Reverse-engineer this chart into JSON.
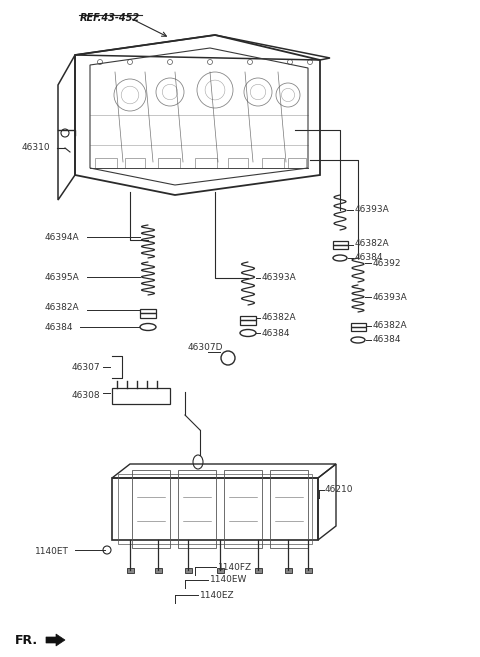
{
  "bg_color": "#ffffff",
  "line_color": "#2a2a2a",
  "text_color": "#333333",
  "fig_width": 4.8,
  "fig_height": 6.57,
  "dpi": 100,
  "labels": {
    "ref": "REF.43-452",
    "46310": "46310",
    "46394A": "46394A",
    "46395A": "46395A",
    "46382A_l": "46382A",
    "46384_l": "46384",
    "46307D": "46307D",
    "46307": "46307",
    "46308": "46308",
    "46393A_m": "46393A",
    "46382A_m": "46382A",
    "46384_m": "46384",
    "46393A_tr": "46393A",
    "46382A_tr": "46382A",
    "46384_tr": "46384",
    "46392": "46392",
    "46393A_r": "46393A",
    "46382A_r": "46382A",
    "46384_r": "46384",
    "46210": "46210",
    "1140ET": "1140ET",
    "1140FZ": "1140FZ",
    "1140EW": "1140EW",
    "1140EZ": "1140EZ",
    "fr": "FR."
  }
}
